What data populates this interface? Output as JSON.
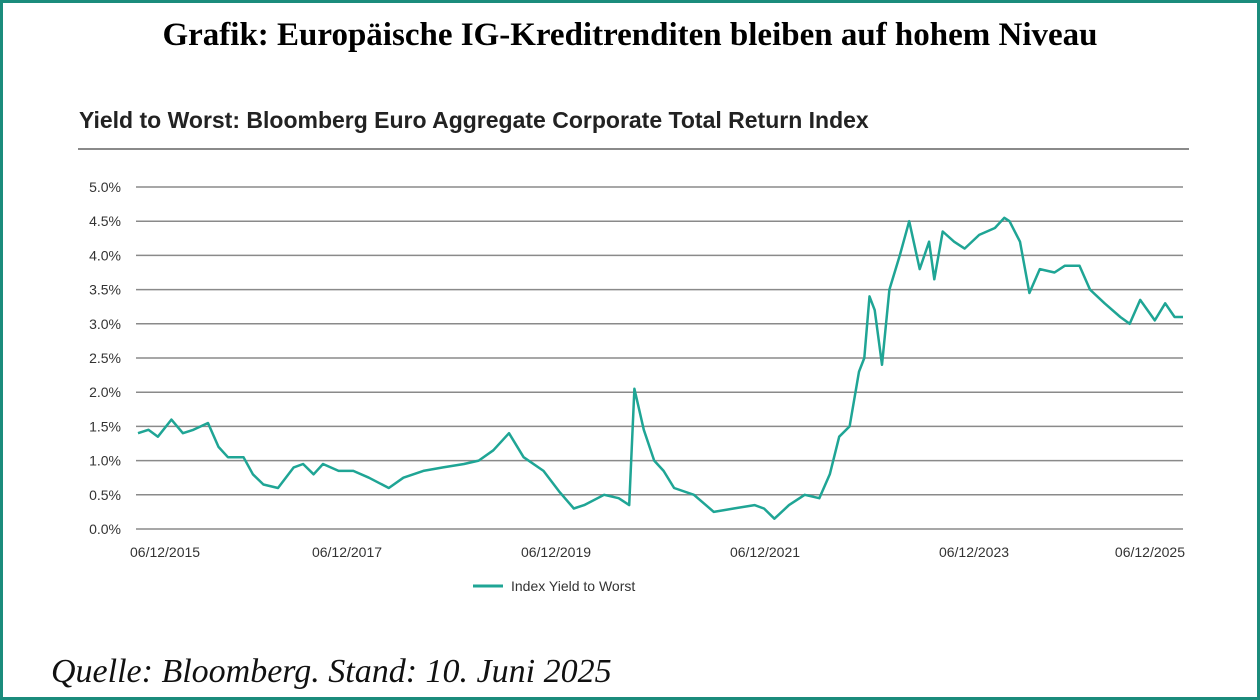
{
  "header": {
    "title": "Grafik: Europäische IG-Kreditrenditen bleiben auf hohem Niveau"
  },
  "footer": {
    "source": "Quelle: Bloomberg. Stand: 10. Juni 2025"
  },
  "colors": {
    "line": "#1fa595",
    "frame": "#1b8c7c",
    "grid": "#8a8a8a"
  },
  "chart_data": {
    "type": "line",
    "title": "Yield to Worst: Bloomberg Euro Aggregate Corporate Total Return Index",
    "xlabel": "",
    "ylabel": "",
    "ylim": [
      0,
      5
    ],
    "xlim": [
      2015.45,
      2025.45
    ],
    "y_ticks": [
      "0.0%",
      "0.5%",
      "1.0%",
      "1.5%",
      "2.0%",
      "2.5%",
      "3.0%",
      "3.5%",
      "4.0%",
      "4.5%",
      "5.0%"
    ],
    "x_ticks": [
      {
        "label": "06/12/2015",
        "x": 2015.45
      },
      {
        "label": "06/12/2017",
        "x": 2017.45
      },
      {
        "label": "06/12/2019",
        "x": 2019.45
      },
      {
        "label": "06/12/2021",
        "x": 2021.45
      },
      {
        "label": "06/12/2023",
        "x": 2023.45
      },
      {
        "label": "06/12/2025",
        "x": 2025.45
      }
    ],
    "grid": true,
    "legend_position": "bottom-center",
    "series": [
      {
        "name": "Index Yield to Worst",
        "x": [
          2015.45,
          2015.55,
          2015.64,
          2015.77,
          2015.88,
          2015.98,
          2016.12,
          2016.22,
          2016.31,
          2016.46,
          2016.55,
          2016.65,
          2016.79,
          2016.94,
          2017.03,
          2017.13,
          2017.22,
          2017.37,
          2017.51,
          2017.66,
          2017.85,
          2017.99,
          2018.18,
          2018.37,
          2018.57,
          2018.71,
          2018.85,
          2019.0,
          2019.14,
          2019.33,
          2019.48,
          2019.62,
          2019.72,
          2019.91,
          2020.05,
          2020.15,
          2020.2,
          2020.29,
          2020.39,
          2020.48,
          2020.58,
          2020.77,
          2020.96,
          2021.15,
          2021.35,
          2021.44,
          2021.54,
          2021.68,
          2021.83,
          2021.97,
          2022.07,
          2022.16,
          2022.26,
          2022.35,
          2022.4,
          2022.45,
          2022.5,
          2022.57,
          2022.64,
          2022.74,
          2022.83,
          2022.93,
          2023.02,
          2023.07,
          2023.15,
          2023.26,
          2023.36,
          2023.5,
          2023.65,
          2023.74,
          2023.79,
          2023.89,
          2023.98,
          2024.08,
          2024.22,
          2024.32,
          2024.46,
          2024.56,
          2024.7,
          2024.85,
          2024.94,
          2025.04,
          2025.18,
          2025.28,
          2025.37,
          2025.45
        ],
        "values": [
          1.4,
          1.45,
          1.35,
          1.6,
          1.4,
          1.45,
          1.55,
          1.2,
          1.05,
          1.05,
          0.8,
          0.65,
          0.6,
          0.9,
          0.95,
          0.8,
          0.95,
          0.85,
          0.85,
          0.75,
          0.6,
          0.75,
          0.85,
          0.9,
          0.95,
          1.0,
          1.15,
          1.4,
          1.05,
          0.85,
          0.55,
          0.3,
          0.35,
          0.5,
          0.45,
          0.35,
          2.05,
          1.45,
          1.0,
          0.85,
          0.6,
          0.5,
          0.25,
          0.3,
          0.35,
          0.3,
          0.15,
          0.35,
          0.5,
          0.45,
          0.8,
          1.35,
          1.5,
          2.3,
          2.5,
          3.4,
          3.2,
          2.4,
          3.5,
          4.0,
          4.5,
          3.8,
          4.2,
          3.65,
          4.35,
          4.2,
          4.1,
          4.3,
          4.4,
          4.55,
          4.5,
          4.2,
          3.45,
          3.8,
          3.75,
          3.85,
          3.85,
          3.5,
          3.3,
          3.1,
          3.0,
          3.35,
          3.05,
          3.3,
          3.1,
          3.1
        ]
      }
    ]
  }
}
